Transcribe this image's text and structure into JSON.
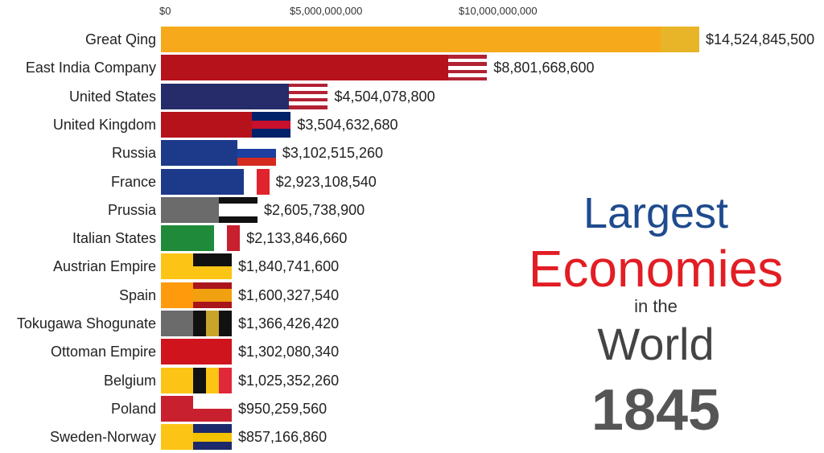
{
  "chart_data": {
    "type": "bar",
    "orientation": "horizontal",
    "year": "1845",
    "xlim": [
      0,
      14524845500
    ],
    "ticks": [
      {
        "value": 0,
        "label": "$0"
      },
      {
        "value": 5000000000,
        "label": "$5,000,000,000"
      },
      {
        "value": 10000000000,
        "label": "$10,000,000,000"
      }
    ],
    "bars": [
      {
        "name": "Great Qing",
        "value": 14524845500,
        "label": "$14,524,845,500",
        "color": "#f5a91b",
        "flag": {
          "dir": "h",
          "colors": [
            "#e8b428"
          ]
        }
      },
      {
        "name": "East India Company",
        "value": 8801668600,
        "label": "$8,801,668,600",
        "color": "#b5121b",
        "flag": {
          "dir": "h",
          "colors": [
            "#b22234",
            "#ffffff",
            "#b22234",
            "#ffffff",
            "#b22234",
            "#ffffff",
            "#b22234"
          ]
        }
      },
      {
        "name": "United States",
        "value": 4504078800,
        "label": "$4,504,078,800",
        "color": "#262c6a",
        "flag": {
          "dir": "h",
          "colors": [
            "#b22234",
            "#ffffff",
            "#b22234",
            "#ffffff",
            "#b22234",
            "#ffffff",
            "#b22234"
          ]
        }
      },
      {
        "name": "United Kingdom",
        "value": 3504632680,
        "label": "$3,504,632,680",
        "color": "#b5121b",
        "flag": {
          "dir": "h",
          "colors": [
            "#012169",
            "#c8102e",
            "#012169"
          ]
        }
      },
      {
        "name": "Russia",
        "value": 3102515260,
        "label": "$3,102,515,260",
        "color": "#1d3a8a",
        "flag": {
          "dir": "h",
          "colors": [
            "#ffffff",
            "#1c3fa0",
            "#d52b1e"
          ]
        }
      },
      {
        "name": "France",
        "value": 2923108540,
        "label": "$2,923,108,540",
        "color": "#1d3a8a",
        "flag": {
          "dir": "v",
          "colors": [
            "#1d3a8a",
            "#ffffff",
            "#e1232e"
          ]
        }
      },
      {
        "name": "Prussia",
        "value": 2605738900,
        "label": "$2,605,738,900",
        "color": "#6b6b6b",
        "flag": {
          "dir": "h",
          "colors": [
            "#111111",
            "#ffffff",
            "#ffffff",
            "#111111"
          ]
        }
      },
      {
        "name": "Italian States",
        "value": 2133846660,
        "label": "$2,133,846,660",
        "color": "#1f8a3a",
        "flag": {
          "dir": "v",
          "colors": [
            "#1f8a3a",
            "#ffffff",
            "#c8202e"
          ]
        }
      },
      {
        "name": "Austrian Empire",
        "value": 1840741600,
        "label": "$1,840,741,600",
        "color": "#fcc515",
        "flag": {
          "dir": "h",
          "colors": [
            "#111111",
            "#fcc515"
          ]
        }
      },
      {
        "name": "Spain",
        "value": 1600327540,
        "label": "$1,600,327,540",
        "color": "#ff9a0d",
        "flag": {
          "dir": "h",
          "colors": [
            "#aa151b",
            "#f1a00f",
            "#f1a00f",
            "#aa151b"
          ]
        }
      },
      {
        "name": "Tokugawa Shogunate",
        "value": 1366426420,
        "label": "$1,366,426,420",
        "color": "#6b6b6b",
        "flag": {
          "dir": "v",
          "colors": [
            "#111111",
            "#c9a42a",
            "#111111"
          ]
        }
      },
      {
        "name": "Ottoman Empire",
        "value": 1302080340,
        "label": "$1,302,080,340",
        "color": "#d0141e",
        "flag": {
          "dir": "h",
          "colors": [
            "#d0141e"
          ]
        }
      },
      {
        "name": "Belgium",
        "value": 1025352260,
        "label": "$1,025,352,260",
        "color": "#fcc515",
        "flag": {
          "dir": "v",
          "colors": [
            "#111111",
            "#fcc515",
            "#e0283a"
          ]
        }
      },
      {
        "name": "Poland",
        "value": 950259560,
        "label": "$950,259,560",
        "color": "#c8202e",
        "flag": {
          "dir": "h",
          "colors": [
            "#ffffff",
            "#c8202e"
          ]
        }
      },
      {
        "name": "Sweden-Norway",
        "value": 857166860,
        "label": "$857,166,860",
        "color": "#fcc515",
        "flag": {
          "dir": "h",
          "colors": [
            "#1c2a6b",
            "#f2c200",
            "#1c2a6b"
          ]
        }
      }
    ]
  },
  "title": {
    "line1": "Largest",
    "line2": "Economies",
    "line3": "in the",
    "line4": "World",
    "year": "1845"
  }
}
